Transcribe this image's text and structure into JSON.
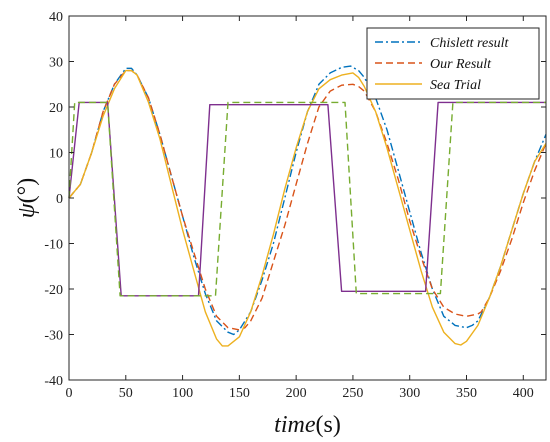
{
  "chart_data": {
    "type": "line",
    "xlabel_main": "time",
    "xlabel_unit": "(s)",
    "ylabel_main": "ψ",
    "ylabel_unit": "(°)",
    "xlim": [
      0,
      420
    ],
    "ylim": [
      -40,
      40
    ],
    "xticks": [
      0,
      50,
      100,
      150,
      200,
      250,
      300,
      350,
      400
    ],
    "yticks": [
      -40,
      -30,
      -20,
      -10,
      0,
      10,
      20,
      30,
      40
    ],
    "grid": false,
    "legend_position": "top-right",
    "series": [
      {
        "name": "Chislett result",
        "color": "#0072BD",
        "dash": "dashdot",
        "legend": true,
        "x": [
          0,
          10,
          20,
          30,
          40,
          50,
          55,
          60,
          70,
          80,
          90,
          100,
          110,
          120,
          130,
          140,
          145,
          150,
          160,
          170,
          180,
          190,
          200,
          210,
          220,
          230,
          240,
          248,
          255,
          260,
          270,
          280,
          290,
          300,
          310,
          320,
          330,
          340,
          350,
          355,
          360,
          370,
          380,
          390,
          400,
          410,
          420
        ],
        "y": [
          0,
          3,
          10,
          19,
          25,
          28.5,
          28.5,
          27,
          22,
          14,
          5,
          -4,
          -13,
          -21,
          -27,
          -29.5,
          -30,
          -29,
          -25,
          -18,
          -10,
          0,
          10,
          19,
          25,
          27.5,
          28.7,
          29,
          28,
          26.5,
          22,
          15,
          6,
          -3,
          -12,
          -20,
          -26,
          -28,
          -28.5,
          -28,
          -27,
          -22,
          -15,
          -7,
          1,
          8,
          14
        ]
      },
      {
        "name": "Our Result",
        "color": "#D95319",
        "dash": "dashed",
        "legend": true,
        "x": [
          0,
          10,
          20,
          30,
          40,
          50,
          55,
          60,
          70,
          80,
          90,
          100,
          110,
          120,
          130,
          140,
          150,
          155,
          160,
          170,
          180,
          190,
          200,
          210,
          220,
          230,
          240,
          250,
          255,
          260,
          270,
          280,
          290,
          300,
          310,
          320,
          330,
          340,
          350,
          360,
          363,
          370,
          380,
          390,
          400,
          410,
          420
        ],
        "y": [
          0,
          3,
          10,
          19,
          25,
          28,
          28,
          27,
          22,
          14,
          5,
          -4,
          -12,
          -20,
          -26,
          -28.5,
          -29,
          -28.5,
          -27,
          -22,
          -14,
          -6,
          3,
          12,
          20,
          23.5,
          24.8,
          25,
          24.5,
          23.5,
          19,
          12,
          4,
          -5,
          -13,
          -20,
          -24,
          -25.5,
          -26,
          -25.5,
          -25,
          -22,
          -16,
          -9,
          -1,
          6,
          12
        ]
      },
      {
        "name": "Sea Trial",
        "color": "#EDB120",
        "dash": "solid",
        "legend": true,
        "x": [
          0,
          10,
          20,
          30,
          40,
          50,
          55,
          60,
          70,
          80,
          90,
          100,
          110,
          120,
          130,
          135,
          140,
          150,
          160,
          170,
          180,
          190,
          200,
          210,
          220,
          230,
          240,
          250,
          255,
          260,
          270,
          280,
          290,
          300,
          310,
          320,
          330,
          340,
          345,
          350,
          360,
          370,
          380,
          390,
          400,
          410,
          420
        ],
        "y": [
          0,
          3,
          10,
          18,
          24,
          28,
          28,
          27,
          21,
          13,
          3,
          -7,
          -16,
          -25,
          -31,
          -32.5,
          -32.5,
          -30.5,
          -25,
          -17,
          -8,
          2,
          11,
          19,
          24,
          26,
          27,
          27.5,
          26.5,
          24.5,
          19,
          11,
          2,
          -7,
          -16,
          -24,
          -29.5,
          -32,
          -32.3,
          -31.5,
          -28,
          -22,
          -15,
          -7,
          1,
          8,
          12
        ]
      },
      {
        "name": "",
        "color": "#7E2F8E",
        "dash": "solid",
        "legend": false,
        "x": [
          0,
          9,
          34,
          46,
          114,
          124,
          228,
          240,
          314,
          325,
          420
        ],
        "y": [
          0,
          21,
          21,
          -21.5,
          -21.5,
          20.5,
          20.5,
          -20.5,
          -20.5,
          21,
          21
        ]
      },
      {
        "name": "",
        "color": "#77AC30",
        "dash": "dashed",
        "legend": true,
        "x": [
          0,
          5,
          34,
          45,
          129,
          140,
          243,
          253,
          327,
          338,
          420
        ],
        "y": [
          0,
          21,
          21,
          -21.5,
          -21.5,
          21,
          21,
          -21,
          -21,
          21,
          21
        ]
      }
    ]
  }
}
